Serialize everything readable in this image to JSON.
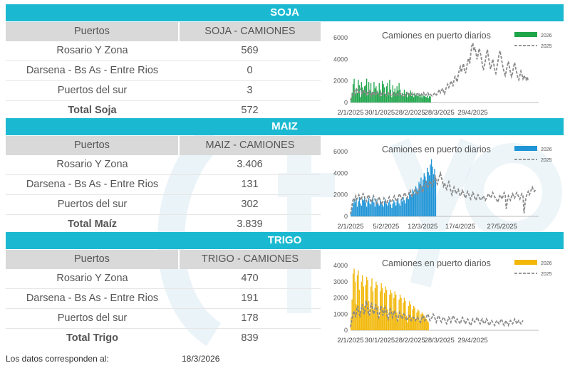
{
  "footer": {
    "label": "Los datos corresponden al:",
    "date": "18/3/2026"
  },
  "sections": [
    {
      "title": "SOJA",
      "col_puertos": "Puertos",
      "col_value": "SOJA - CAMIONES",
      "rows": [
        {
          "label": "Rosario Y Zona",
          "value": "569"
        },
        {
          "label": "Darsena - Bs As - Entre Rios",
          "value": "0"
        },
        {
          "label": "Puertos del sur",
          "value": "3"
        }
      ],
      "total_label": "Total Soja",
      "total_value": "572"
    },
    {
      "title": "MAIZ",
      "col_puertos": "Puertos",
      "col_value": "MAIZ - CAMIONES",
      "rows": [
        {
          "label": "Rosario Y Zona",
          "value": "3.406"
        },
        {
          "label": "Darsena - Bs As - Entre Rios",
          "value": "131"
        },
        {
          "label": "Puertos del sur",
          "value": "302"
        }
      ],
      "total_label": "Total Maíz",
      "total_value": "3.839"
    },
    {
      "title": "TRIGO",
      "col_puertos": "Puertos",
      "col_value": "TRIGO - CAMIONES",
      "rows": [
        {
          "label": "Rosario Y Zona",
          "value": "470"
        },
        {
          "label": "Darsena - Bs As - Entre Rios",
          "value": "191"
        },
        {
          "label": "Puertos del sur",
          "value": "178"
        }
      ],
      "total_label": "Total Trigo",
      "total_value": "839"
    }
  ],
  "chart_data": [
    {
      "type": "bar+line",
      "title": "Camiones en puerto diarios",
      "color_2026": "#1ea54a",
      "xlim": [
        0,
        180
      ],
      "ylim": [
        0,
        6000
      ],
      "yticks": [
        "0",
        "2000",
        "4000",
        "6000"
      ],
      "xticks": [
        {
          "label": "2/1/2025",
          "x": 0
        },
        {
          "label": "30/1/2025",
          "x": 28
        },
        {
          "label": "28/2/2025",
          "x": 57
        },
        {
          "label": "28/3/2025",
          "x": 85
        },
        {
          "label": "29/4/2025",
          "x": 117
        }
      ],
      "series": [
        {
          "name": "2026",
          "style": "bar",
          "x0": 0,
          "values": [
            450,
            900,
            1700,
            2200,
            800,
            1300,
            900,
            2100,
            1600,
            500,
            1900,
            1400,
            1100,
            1500,
            1600,
            2200,
            700,
            1900,
            1100,
            1800,
            900,
            1000,
            1900,
            1300,
            1500,
            1100,
            800,
            1800,
            1200,
            600,
            2000,
            1700,
            1400,
            800,
            1500,
            1800,
            700,
            2100,
            1200,
            500,
            1600,
            1000,
            1300,
            900,
            1500,
            1100,
            1800,
            1200,
            700,
            900,
            600,
            1200,
            800,
            1000,
            500,
            900,
            700,
            1100,
            600,
            800,
            500,
            900,
            700,
            850,
            600,
            800,
            500,
            750,
            450,
            700,
            600,
            550,
            500,
            650,
            400,
            600,
            550
          ]
        },
        {
          "name": "2025",
          "style": "dashed-line",
          "x0": 0,
          "values": [
            200,
            500,
            700,
            900,
            1100,
            800,
            1200,
            1000,
            900,
            1300,
            1100,
            800,
            1000,
            1200,
            900,
            700,
            1000,
            800,
            1100,
            900,
            600,
            1000,
            800,
            900,
            700,
            1000,
            900,
            800,
            600,
            900,
            700,
            800,
            900,
            700,
            600,
            800,
            900,
            700,
            800,
            600,
            700,
            900,
            800,
            700,
            600,
            800,
            700,
            900,
            800,
            600,
            700,
            800,
            600,
            700,
            900,
            700,
            800,
            600,
            700,
            900,
            800,
            700,
            600,
            700,
            800,
            900,
            700,
            600,
            800,
            700,
            900,
            600,
            700,
            800,
            900,
            700,
            800,
            700,
            600,
            700,
            800,
            900,
            700,
            800,
            1000,
            1200,
            900,
            1100,
            1300,
            1000,
            800,
            1200,
            1500,
            1700,
            1400,
            1600,
            2000,
            1800,
            1500,
            2100,
            2400,
            2200,
            1900,
            2500,
            3000,
            3300,
            2800,
            3200,
            3600,
            3000,
            2700,
            3200,
            3800,
            4100,
            3600,
            4500,
            5200,
            5500,
            4800,
            5100,
            4600,
            4000,
            4400,
            5000,
            4700,
            4200,
            3600,
            3000,
            3300,
            3900,
            4500,
            4900,
            4200,
            3600,
            3100,
            3500,
            4000,
            3600,
            3000,
            2700,
            3200,
            3800,
            4400,
            4800,
            4300,
            3700,
            3200,
            2800,
            2500,
            2900,
            3400,
            3800,
            3300,
            2800,
            2400,
            2700,
            3300,
            3700,
            3200,
            2800,
            2300,
            2100,
            2500,
            2900,
            2600,
            2200,
            2500,
            2300,
            2100,
            2400,
            2000
          ]
        }
      ]
    },
    {
      "type": "bar+line",
      "title": "Camiones en puerto diarios",
      "color_2026": "#1f94d6",
      "xlim": [
        0,
        180
      ],
      "ylim": [
        0,
        6000
      ],
      "yticks": [
        "0",
        "2000",
        "4000",
        "6000"
      ],
      "xticks": [
        {
          "label": "2/1/2025",
          "x": 0
        },
        {
          "label": "5/2/2025",
          "x": 34
        },
        {
          "label": "12/3/2025",
          "x": 69
        },
        {
          "label": "17/4/2025",
          "x": 105
        },
        {
          "label": "27/5/2025",
          "x": 145
        }
      ],
      "series": [
        {
          "name": "2026",
          "style": "bar",
          "x0": 0,
          "values": [
            300,
            800,
            1200,
            1500,
            1300,
            1700,
            900,
            1400,
            1800,
            1200,
            1000,
            1600,
            1500,
            1900,
            1300,
            900,
            1400,
            1700,
            1200,
            1100,
            1500,
            1800,
            1300,
            900,
            1600,
            1400,
            1200,
            1000,
            1500,
            1300,
            1100,
            900,
            1400,
            1600,
            1200,
            1000,
            1300,
            1500,
            1100,
            800,
            1200,
            1500,
            1300,
            1000,
            1400,
            1700,
            1200,
            1000,
            1600,
            1400,
            1800,
            1500,
            1200,
            1700,
            1900,
            1600,
            2200,
            2000,
            1800,
            2500,
            2300,
            2100,
            2800,
            2600,
            2400,
            3200,
            3000,
            3600,
            2800,
            3400,
            4000,
            3700,
            3300,
            4500,
            4100,
            3800,
            4800,
            5300,
            4600,
            3900,
            4400,
            3600
          ]
        },
        {
          "name": "2025",
          "style": "dashed-line",
          "x0": 0,
          "values": [
            200,
            800,
            1400,
            1700,
            1500,
            1900,
            1600,
            1800,
            2000,
            1700,
            1500,
            1800,
            2100,
            1900,
            1600,
            1400,
            1700,
            2000,
            1800,
            1500,
            1300,
            1600,
            1900,
            1700,
            1400,
            1200,
            1500,
            1800,
            1600,
            1300,
            1100,
            1400,
            1700,
            1500,
            1200,
            1300,
            1600,
            1800,
            1500,
            1300,
            1500,
            1700,
            1900,
            1600,
            1400,
            1600,
            1900,
            2100,
            1800,
            1600,
            1800,
            2000,
            2200,
            1900,
            1700,
            1900,
            2200,
            2400,
            2100,
            1800,
            2100,
            2300,
            2500,
            2200,
            2000,
            2300,
            2600,
            2800,
            2500,
            2200,
            2600,
            3000,
            3200,
            2900,
            2600,
            3000,
            3300,
            3100,
            2800,
            3100,
            3400,
            3700,
            3300,
            3000,
            3400,
            3700,
            4000,
            3600,
            3200,
            2800,
            3100,
            2700,
            2500,
            2900,
            3200,
            2800,
            2300,
            2000,
            2400,
            2700,
            2400,
            2100,
            2300,
            2500,
            2200,
            1900,
            2100,
            2400,
            2200,
            1900,
            1700,
            2000,
            2300,
            2100,
            1800,
            1600,
            1900,
            2200,
            2000,
            1700,
            1500,
            1800,
            2000,
            1800,
            1600,
            1500,
            1700,
            1900,
            1700,
            1500,
            1700,
            1900,
            2100,
            1900,
            1700,
            1900,
            2200,
            2000,
            1800,
            1600,
            1500,
            1300,
            1700,
            2000,
            1800,
            1600,
            1900,
            2200,
            2000,
            700,
            1400,
            1900,
            1700,
            1500,
            1800,
            2100,
            1900,
            1700,
            2000,
            2200,
            2000,
            1800,
            1600,
            1900,
            2100,
            1900,
            300,
            1200,
            1800,
            2100,
            2300,
            2000,
            2200,
            2500,
            2700,
            2400,
            2300,
            2500
          ]
        }
      ]
    },
    {
      "type": "bar+line",
      "title": "Camiones en puerto diarios",
      "color_2026": "#f2b707",
      "xlim": [
        0,
        180
      ],
      "ylim": [
        0,
        4000
      ],
      "yticks": [
        "0",
        "1000",
        "2000",
        "3000",
        "4000"
      ],
      "xticks": [
        {
          "label": "2/1/2025",
          "x": 0
        },
        {
          "label": "30/1/2025",
          "x": 28
        },
        {
          "label": "28/2/2025",
          "x": 57
        },
        {
          "label": "28/3/2025",
          "x": 85
        },
        {
          "label": "29/4/2025",
          "x": 117
        }
      ],
      "series": [
        {
          "name": "2026",
          "style": "bar",
          "x0": 0,
          "values": [
            800,
            1900,
            3500,
            3800,
            3000,
            1600,
            3400,
            3700,
            2500,
            1200,
            3000,
            3400,
            2700,
            1500,
            2800,
            3300,
            3100,
            1800,
            900,
            2700,
            3200,
            2400,
            1300,
            2600,
            3000,
            2800,
            1500,
            800,
            2400,
            2900,
            2600,
            1400,
            2300,
            2700,
            2500,
            1300,
            700,
            2200,
            2500,
            2300,
            1200,
            2000,
            2400,
            2200,
            1100,
            600,
            1900,
            2200,
            2000,
            1000,
            1700,
            2000,
            1800,
            900,
            500,
            1500,
            1800,
            1600,
            800,
            1300,
            1500,
            1400,
            700,
            1100,
            1300,
            1200,
            600,
            1000,
            1100,
            1000,
            900,
            800,
            700,
            600,
            500
          ]
        },
        {
          "name": "2025",
          "style": "dashed-line",
          "x0": 0,
          "values": [
            200,
            600,
            900,
            1200,
            1000,
            800,
            1300,
            1500,
            1100,
            900,
            1200,
            1600,
            1400,
            1000,
            1300,
            1800,
            1500,
            1100,
            900,
            1400,
            1700,
            1300,
            1000,
            1200,
            1600,
            1400,
            1000,
            800,
            1100,
            1500,
            1300,
            900,
            1100,
            1400,
            1200,
            900,
            700,
            1000,
            1300,
            1100,
            800,
            1000,
            1200,
            1000,
            700,
            600,
            900,
            1100,
            900,
            700,
            800,
            1000,
            900,
            700,
            600,
            800,
            900,
            800,
            600,
            700,
            800,
            700,
            600,
            700,
            800,
            700,
            600,
            500,
            700,
            900,
            800,
            600,
            700,
            900,
            1000,
            800,
            600,
            700,
            800,
            1000,
            900,
            700,
            500,
            700,
            900,
            800,
            600,
            500,
            700,
            800,
            700,
            500,
            400,
            600,
            800,
            700,
            500,
            700,
            900,
            800,
            600,
            500,
            700,
            600,
            500,
            400,
            600,
            800,
            700,
            500,
            400,
            600,
            700,
            600,
            400,
            300,
            500,
            700,
            600,
            500,
            600,
            800,
            700,
            500,
            400,
            600,
            700,
            500,
            400,
            500,
            700,
            600,
            400,
            300,
            500,
            600,
            500,
            400,
            300,
            500,
            600,
            500,
            400,
            500,
            700,
            600,
            400,
            300,
            500,
            600,
            400,
            300,
            500,
            600,
            500,
            400,
            500,
            700,
            600,
            400,
            500,
            600,
            500,
            400,
            500,
            600
          ]
        }
      ]
    }
  ]
}
